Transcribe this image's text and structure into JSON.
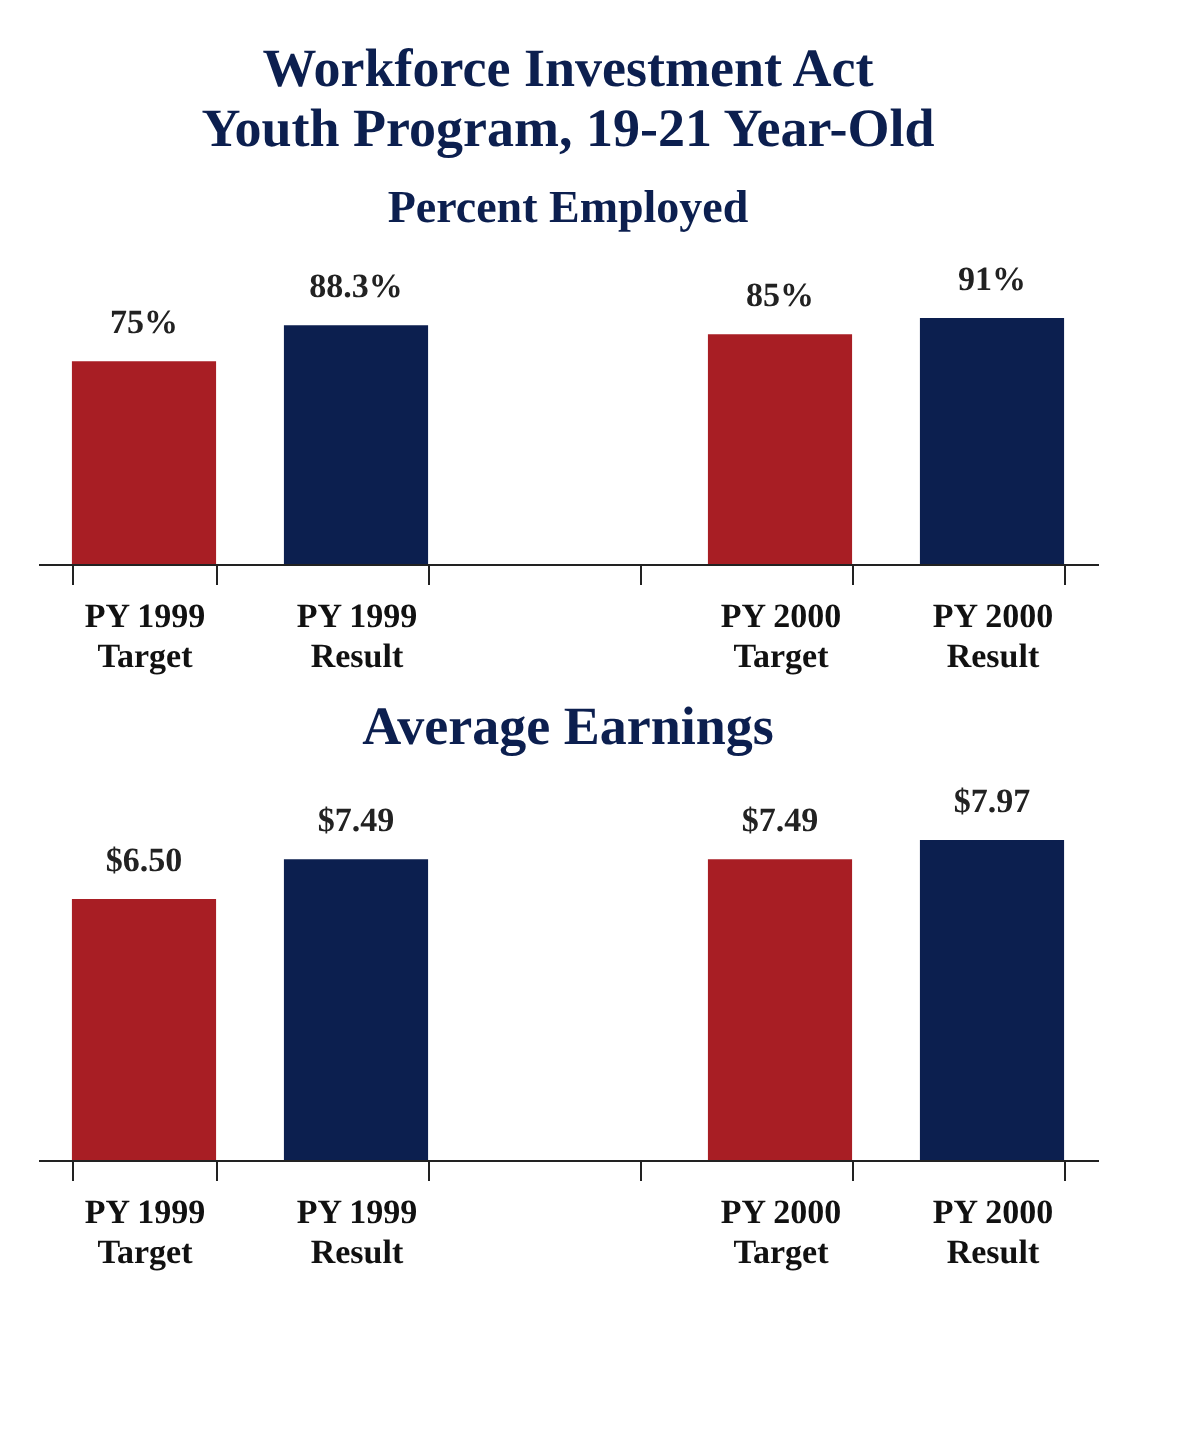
{
  "chart_data": [
    {
      "type": "bar",
      "title": "Workforce Investment Act\nYouth Program, 19-21 Year-Old",
      "subtitle": "Percent Employed",
      "categories": [
        "PY 1999\nTarget",
        "PY 1999\nResult",
        null,
        "PY 2000\nTarget",
        "PY 2000\nResult"
      ],
      "values": [
        75,
        88.3,
        null,
        85,
        91
      ],
      "colors": [
        "#a81e24",
        "#0c1f4f",
        null,
        "#a81e24",
        "#0c1f4f"
      ],
      "value_labels": [
        "75%",
        "88.3%",
        null,
        "85%",
        "91%"
      ]
    },
    {
      "type": "bar",
      "title": "Average Earnings",
      "categories": [
        "PY 1999\nTarget",
        "PY 1999\nResult",
        null,
        "PY 2000\nTarget",
        "PY 2000\nResult"
      ],
      "values": [
        6.5,
        7.49,
        null,
        7.49,
        7.97
      ],
      "colors": [
        "#a81e24",
        "#0c1f4f",
        null,
        "#a81e24",
        "#0c1f4f"
      ],
      "value_labels": [
        "$6.50",
        "$7.49",
        null,
        "$7.49",
        "$7.97"
      ]
    }
  ]
}
